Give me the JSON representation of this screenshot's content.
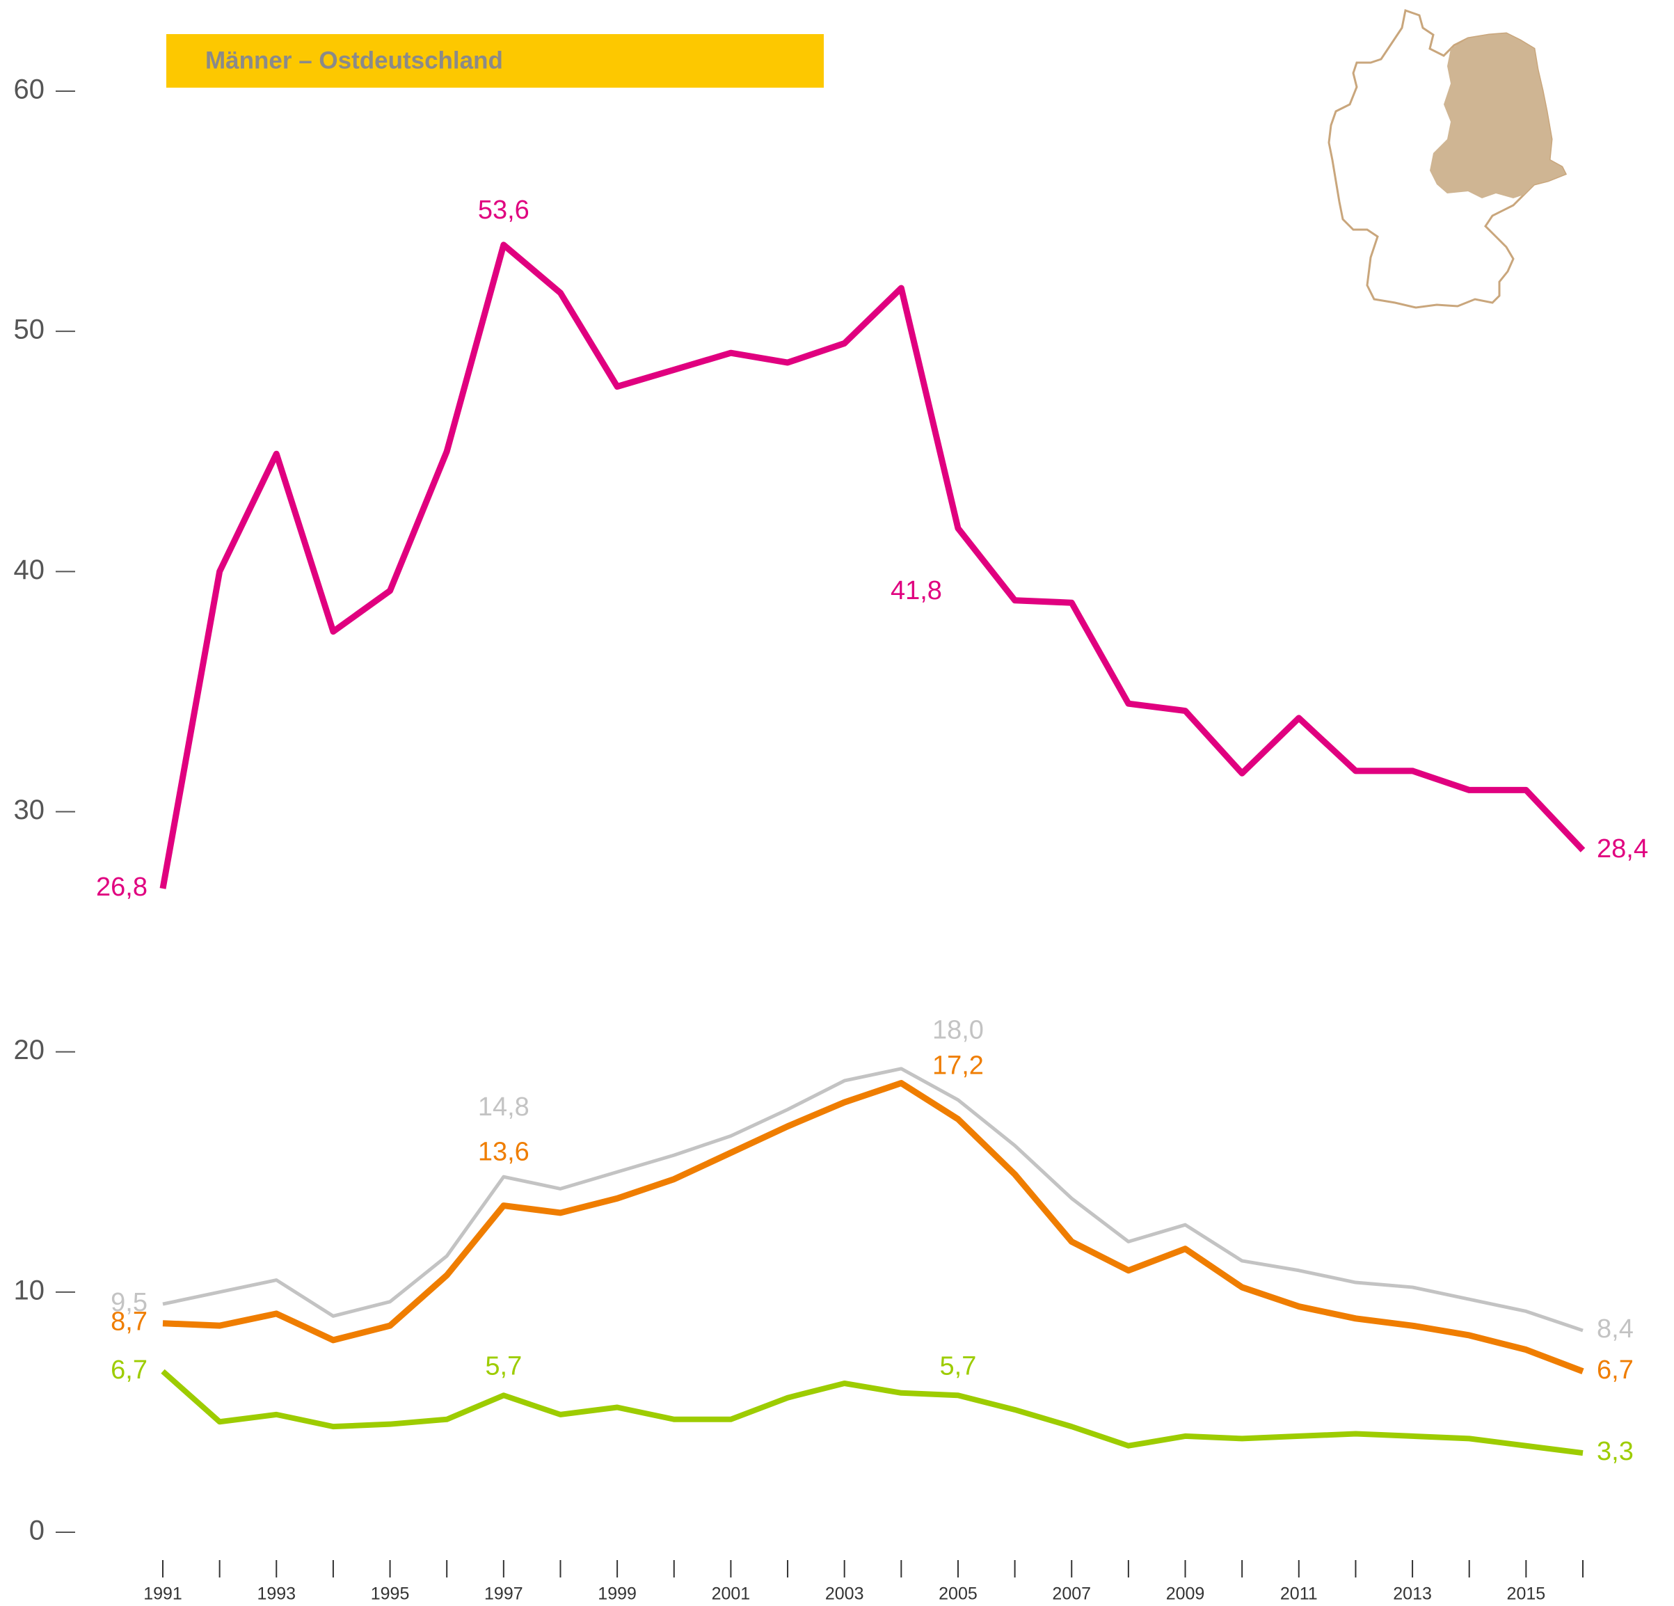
{
  "chart_data": {
    "type": "line",
    "title": "Männer – Ostdeutschland",
    "title_bg": "#fdc800",
    "categories": [
      "1991",
      null,
      "1993",
      null,
      "1995",
      null,
      "1997",
      null,
      "1999",
      null,
      "2001",
      null,
      "2003",
      null,
      "2005",
      null,
      "2007",
      null,
      "2009",
      null,
      "2011",
      null,
      "2013",
      null,
      "2015",
      null
    ],
    "ylim": [
      0,
      60
    ],
    "yticks": [
      0,
      10,
      20,
      30,
      40,
      50,
      60
    ],
    "series": [
      {
        "color": "#c3c3c3",
        "values": [
          9.5,
          10.0,
          10.5,
          9.0,
          9.6,
          11.5,
          14.8,
          14.3,
          15.0,
          15.7,
          16.5,
          17.6,
          18.8,
          19.3,
          18.0,
          16.1,
          13.9,
          12.1,
          12.8,
          11.3,
          10.9,
          10.4,
          10.2,
          9.7,
          9.2,
          8.4
        ],
        "value_labels": [
          "9,5",
          null,
          null,
          null,
          null,
          null,
          "14,8",
          null,
          null,
          null,
          null,
          null,
          null,
          null,
          "18,0",
          null,
          null,
          null,
          null,
          null,
          null,
          null,
          null,
          null,
          null,
          "8,4"
        ]
      },
      {
        "color": "#ef7d00",
        "values": [
          8.7,
          8.6,
          9.1,
          8.0,
          8.6,
          10.7,
          13.6,
          13.3,
          13.9,
          14.7,
          15.8,
          16.9,
          17.9,
          18.7,
          17.2,
          14.9,
          12.1,
          10.9,
          11.8,
          10.2,
          9.4,
          8.9,
          8.6,
          8.2,
          7.6,
          6.7
        ],
        "value_labels": [
          "8,7",
          null,
          null,
          null,
          null,
          null,
          "13,6",
          null,
          null,
          null,
          null,
          null,
          null,
          null,
          "17,2",
          null,
          null,
          null,
          null,
          null,
          null,
          null,
          null,
          null,
          null,
          "6,7"
        ]
      },
      {
        "color": "#9dcc00",
        "values": [
          6.7,
          4.6,
          4.9,
          4.4,
          4.5,
          4.7,
          5.7,
          4.9,
          5.2,
          4.7,
          4.7,
          5.6,
          6.2,
          5.8,
          5.7,
          5.1,
          4.4,
          3.6,
          4.0,
          3.9,
          4.0,
          4.1,
          4.0,
          3.9,
          3.6,
          3.3
        ],
        "value_labels": [
          "6,7",
          null,
          null,
          null,
          null,
          null,
          "5,7",
          null,
          null,
          null,
          null,
          null,
          null,
          null,
          "5,7",
          null,
          null,
          null,
          null,
          null,
          null,
          null,
          null,
          null,
          null,
          "3,3"
        ]
      },
      {
        "color": "#e0007f",
        "values": [
          26.8,
          40.0,
          44.9,
          37.5,
          39.2,
          45.0,
          53.6,
          51.6,
          47.7,
          48.4,
          49.1,
          48.7,
          49.5,
          51.8,
          41.8,
          38.8,
          38.7,
          34.5,
          34.2,
          31.6,
          33.9,
          31.7,
          31.7,
          30.9,
          30.9,
          28.4
        ],
        "value_labels": [
          "26,8",
          null,
          null,
          null,
          null,
          null,
          "53,6",
          null,
          null,
          null,
          null,
          null,
          null,
          null,
          "41,8",
          null,
          null,
          null,
          null,
          null,
          null,
          null,
          null,
          null,
          null,
          "28,4"
        ]
      }
    ]
  }
}
